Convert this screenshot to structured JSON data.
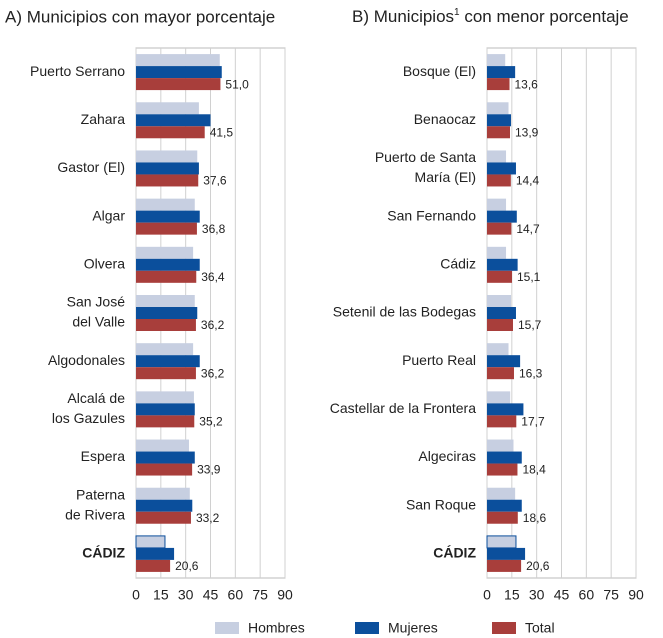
{
  "chart_data": [
    {
      "type": "hbar",
      "title": "A) Municipios con mayor porcentaje",
      "categories": [
        "Puerto Serrano",
        "Zahara",
        "Gastor (El)",
        "Algar",
        "Olvera",
        [
          "San José",
          "del Valle"
        ],
        "Algodonales",
        [
          "Alcalá de",
          "los Gazules"
        ],
        "Espera",
        [
          "Paterna",
          "de Rivera"
        ],
        "CÁDIZ"
      ],
      "series": [
        {
          "name": "Hombres",
          "color": "#c7cfe1",
          "values": [
            50.6,
            38,
            37,
            35.5,
            34.5,
            35.5,
            34.5,
            35,
            32,
            32.5,
            17.5
          ]
        },
        {
          "name": "Mujeres",
          "color": "#0b4f9c",
          "values": [
            51.8,
            45,
            38,
            38.5,
            38.5,
            37,
            38.5,
            35.5,
            35.5,
            34,
            23
          ]
        },
        {
          "name": "Total",
          "color": "#a83e3b",
          "values": [
            51.0,
            41.5,
            37.6,
            36.8,
            36.4,
            36.2,
            36.2,
            35.2,
            33.9,
            33.2,
            20.6
          ],
          "value_labels": [
            "51,0",
            "41,5",
            "37,6",
            "36,8",
            "36,4",
            "36,2",
            "36,2",
            "35,2",
            "33,9",
            "33,2",
            "20,6"
          ]
        }
      ],
      "xlim": [
        0,
        90
      ],
      "xticks": [
        0,
        15,
        30,
        45,
        60,
        75,
        90
      ],
      "grid": true
    },
    {
      "type": "hbar",
      "title": [
        "B) Municipios",
        "1",
        " con menor porcentaje"
      ],
      "categories": [
        "Bosque (El)",
        "Benaocaz",
        [
          "Puerto de Santa",
          "María (El)"
        ],
        "San Fernando",
        "Cádiz",
        "Setenil de las Bodegas",
        "Puerto Real",
        "Castellar de la Frontera",
        "Algeciras",
        "San Roque",
        "CÁDIZ"
      ],
      "series": [
        {
          "name": "Hombres",
          "color": "#c7cfe1",
          "values": [
            11,
            13,
            11.5,
            11.5,
            11.5,
            14.5,
            13,
            14,
            16,
            17,
            17.5
          ]
        },
        {
          "name": "Mujeres",
          "color": "#0b4f9c",
          "values": [
            17,
            14.5,
            17.5,
            18,
            18.5,
            17.5,
            20,
            22,
            21,
            21,
            23
          ]
        },
        {
          "name": "Total",
          "color": "#a83e3b",
          "values": [
            13.6,
            13.9,
            14.4,
            14.7,
            15.1,
            15.7,
            16.3,
            17.7,
            18.4,
            18.6,
            20.6
          ],
          "value_labels": [
            "13,6",
            "13,9",
            "14,4",
            "14,7",
            "15,1",
            "15,7",
            "16,3",
            "17,7",
            "18,4",
            "18,6",
            "20,6"
          ]
        }
      ],
      "xlim": [
        0,
        90
      ],
      "xticks": [
        0,
        15,
        30,
        45,
        60,
        75,
        90
      ],
      "grid": true
    }
  ]
}
